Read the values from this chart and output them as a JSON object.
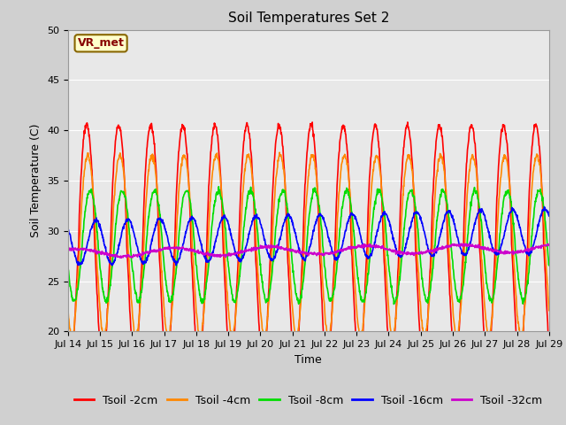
{
  "title": "Soil Temperatures Set 2",
  "xlabel": "Time",
  "ylabel": "Soil Temperature (C)",
  "xlim_start": 0,
  "xlim_end": 15,
  "ylim": [
    20,
    50
  ],
  "yticks": [
    20,
    25,
    30,
    35,
    40,
    45,
    50
  ],
  "xtick_labels": [
    "Jul 14",
    "Jul 15",
    "Jul 16",
    "Jul 17",
    "Jul 18",
    "Jul 19",
    "Jul 20",
    "Jul 21",
    "Jul 22",
    "Jul 23",
    "Jul 24",
    "Jul 25",
    "Jul 26",
    "Jul 27",
    "Jul 28",
    "Jul 29"
  ],
  "annotation_text": "VR_met",
  "annotation_bg": "#ffffcc",
  "annotation_border": "#886600",
  "background_color": "#e8e8e8",
  "grid_color": "#ffffff",
  "fig_bg_color": "#d0d0d0",
  "colors": {
    "Tsoil -2cm": "#ff0000",
    "Tsoil -4cm": "#ff8800",
    "Tsoil -8cm": "#00dd00",
    "Tsoil -16cm": "#0000ff",
    "Tsoil -32cm": "#cc00cc"
  },
  "n_days": 15,
  "points_per_day": 96,
  "title_fontsize": 11,
  "legend_fontsize": 9,
  "axis_label_fontsize": 9,
  "tick_fontsize": 8,
  "figsize": [
    6.4,
    4.8
  ],
  "dpi": 100
}
